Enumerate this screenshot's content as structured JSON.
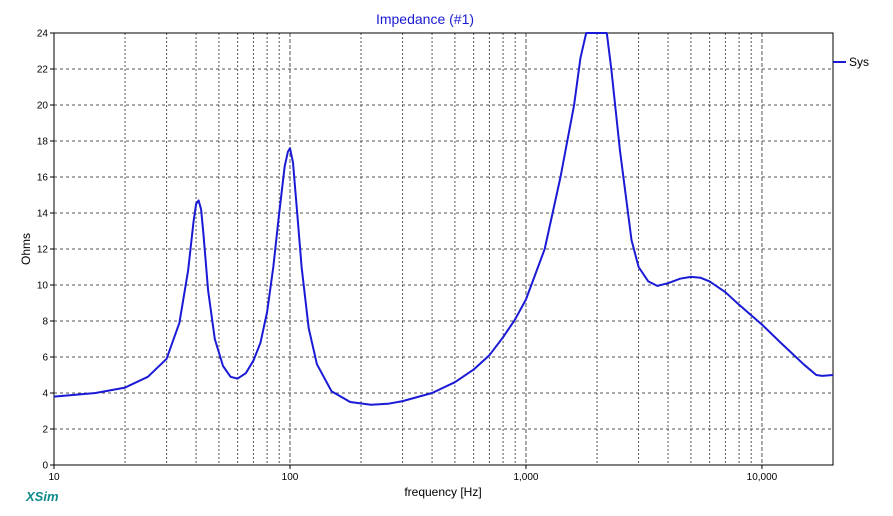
{
  "chart_data": {
    "type": "line",
    "title": "Impedance (#1)",
    "xlabel": "frequency [Hz]",
    "ylabel": "Ohms",
    "xscale": "log",
    "xlim": [
      10,
      20000
    ],
    "ylim": [
      0,
      24
    ],
    "grid": true,
    "legend_placement": "right",
    "x_ticks": [
      10,
      100,
      1000,
      10000
    ],
    "x_tick_labels": [
      "10",
      "100",
      "1,000",
      "10,000"
    ],
    "y_ticks": [
      0,
      2,
      4,
      6,
      8,
      10,
      12,
      14,
      16,
      18,
      20,
      22,
      24
    ],
    "y_tick_labels": [
      "0",
      "2",
      "4",
      "6",
      "8",
      "10",
      "12",
      "14",
      "16",
      "18",
      "20",
      "22",
      "24"
    ],
    "series": [
      {
        "name": "Sys",
        "color": "#1a1ad6",
        "x": [
          10,
          15,
          20,
          25,
          30,
          34,
          37,
          39,
          40,
          41,
          42,
          43,
          45,
          48,
          52,
          56,
          60,
          65,
          70,
          75,
          80,
          85,
          90,
          95,
          98,
          100,
          103,
          107,
          112,
          120,
          130,
          150,
          180,
          220,
          260,
          300,
          400,
          500,
          600,
          700,
          800,
          900,
          1000,
          1200,
          1400,
          1600,
          1700,
          1800,
          1900,
          2000,
          2100,
          2200,
          2300,
          2500,
          2800,
          3000,
          3300,
          3600,
          4000,
          4500,
          5000,
          5500,
          6000,
          7000,
          8000,
          10000,
          12000,
          15000,
          17000,
          18000,
          20000
        ],
        "y": [
          3.8,
          4.0,
          4.3,
          4.9,
          5.9,
          7.9,
          10.8,
          13.5,
          14.5,
          14.7,
          14.2,
          12.8,
          9.7,
          7.0,
          5.5,
          4.9,
          4.8,
          5.1,
          5.8,
          6.8,
          8.5,
          11.0,
          14.0,
          16.6,
          17.4,
          17.6,
          16.8,
          14.2,
          11.0,
          7.6,
          5.6,
          4.1,
          3.5,
          3.35,
          3.4,
          3.55,
          4.0,
          4.6,
          5.3,
          6.1,
          7.1,
          8.1,
          9.2,
          12.0,
          16.0,
          20.0,
          22.6,
          24.0,
          24.0,
          24.0,
          24.0,
          24.0,
          22.0,
          17.5,
          12.5,
          11.0,
          10.2,
          9.95,
          10.1,
          10.35,
          10.45,
          10.4,
          10.2,
          9.6,
          8.9,
          7.8,
          6.8,
          5.6,
          5.0,
          4.95,
          5.0
        ]
      }
    ]
  },
  "brand": "XSim"
}
